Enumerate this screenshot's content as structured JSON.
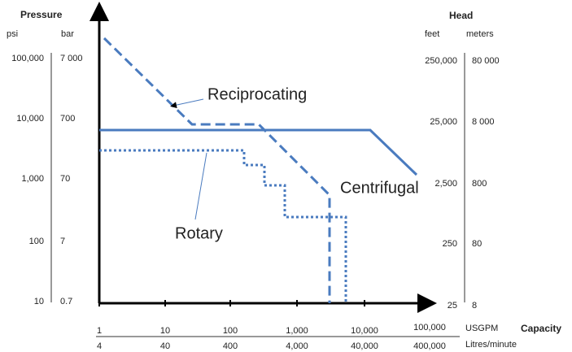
{
  "left_axis": {
    "title": "Pressure",
    "units": [
      "psi",
      "bar"
    ],
    "psi": [
      "100,000",
      "10,000",
      "1,000",
      "100",
      "10"
    ],
    "bar": [
      "7 000",
      "700",
      "70",
      "7",
      "0.7"
    ]
  },
  "right_axis": {
    "title": "Head",
    "units": [
      "feet",
      "meters"
    ],
    "feet": [
      "250,000",
      "25,000",
      "2,500",
      "250",
      "25"
    ],
    "meters": [
      "80 000",
      "8 000",
      "800",
      "80",
      "8"
    ]
  },
  "bottom_axis": {
    "title": "Capacity",
    "usgpm": [
      "1",
      "10",
      "100",
      "1,000",
      "10,000",
      "100,000"
    ],
    "usgpm_unit": "USGPM",
    "litres": [
      "4",
      "40",
      "400",
      "4,000",
      "40,000",
      "400,000"
    ],
    "litres_unit": "Litres/minute"
  },
  "curves": {
    "reciprocating": "Reciprocating",
    "centrifugal": "Centrifugal",
    "rotary": "Rotary"
  }
}
